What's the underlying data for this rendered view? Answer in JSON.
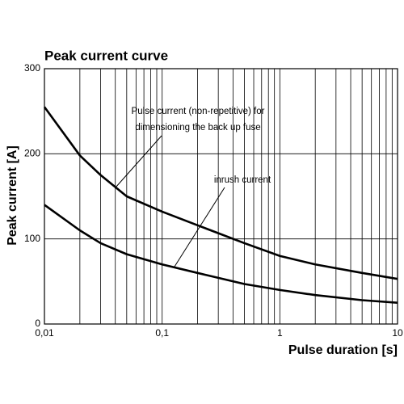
{
  "chart_data": {
    "type": "line",
    "title": "Peak current curve",
    "xlabel": "Pulse duration [s]",
    "ylabel": "Peak current [A]",
    "x": [
      0.01,
      0.02,
      0.03,
      0.05,
      0.1,
      0.2,
      0.5,
      1,
      2,
      5,
      10
    ],
    "series": [
      {
        "color": "#000000",
        "values": [
          255,
          198,
          175,
          150,
          132,
          116,
          95,
          80,
          70,
          60,
          53
        ]
      },
      {
        "color": "#000000",
        "values": [
          140,
          110,
          95,
          82,
          70,
          60,
          47,
          40,
          34,
          28,
          25
        ]
      }
    ],
    "xscale": "log",
    "xlim": [
      0.01,
      10
    ],
    "xticks": [
      {
        "value": 0.01,
        "label": "0,01"
      },
      {
        "value": 0.1,
        "label": "0,1"
      },
      1,
      10
    ],
    "xminorticks": [
      0.02,
      0.03,
      0.04,
      0.05,
      0.06,
      0.07,
      0.08,
      0.09,
      0.2,
      0.3,
      0.4,
      0.5,
      0.6,
      0.7,
      0.8,
      0.9,
      2,
      3,
      4,
      5,
      6,
      7,
      8,
      9
    ],
    "ylim": [
      0,
      300
    ],
    "yticks": [
      0,
      100,
      200,
      300
    ],
    "grid": true,
    "annotations": [
      {
        "text": [
          "Pulse current (non-repetitive) for",
          "dimensioning the back up fuse"
        ]
      },
      {
        "text": [
          "inrush current"
        ]
      }
    ]
  }
}
